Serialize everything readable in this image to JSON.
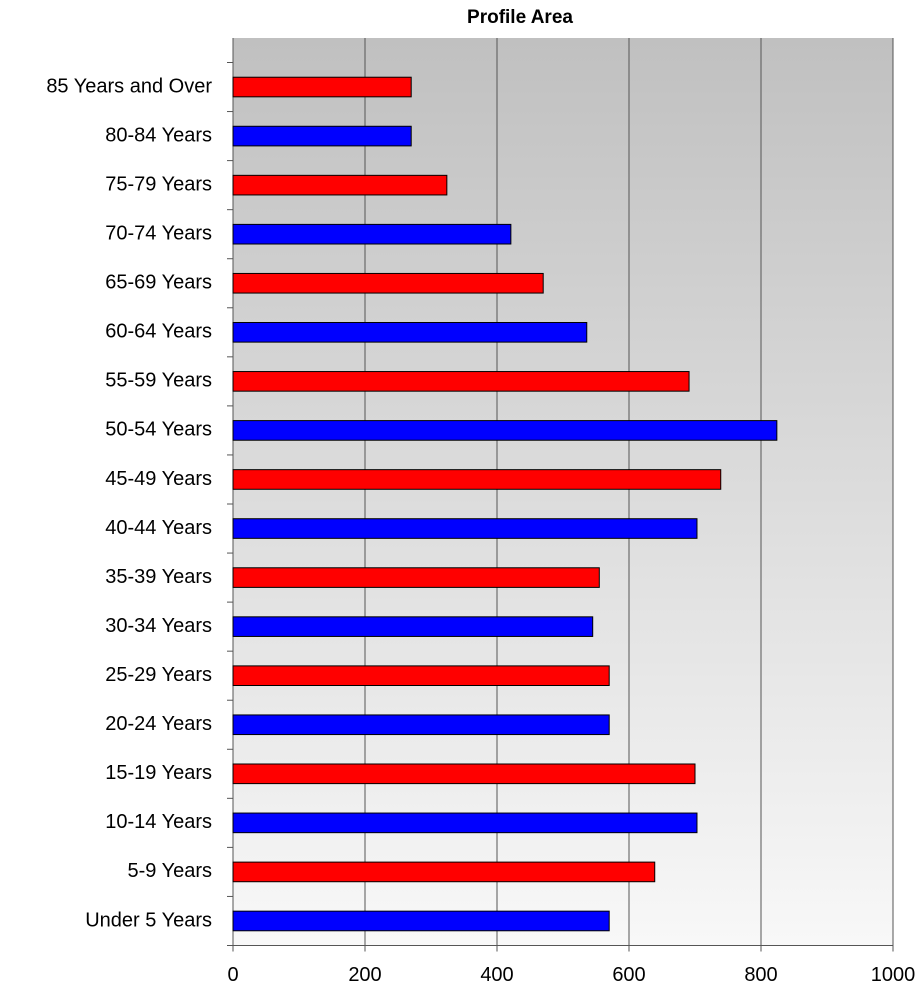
{
  "chart_data": {
    "type": "bar",
    "orientation": "horizontal",
    "title": "Profile Area",
    "categories": [
      "85 Years and Over",
      "80-84 Years",
      "75-79 Years",
      "70-74 Years",
      "65-69 Years",
      "60-64 Years",
      "55-59 Years",
      "50-54 Years",
      "45-49 Years",
      "40-44 Years",
      "35-39 Years",
      "30-34 Years",
      "25-29 Years",
      "20-24 Years",
      "15-19 Years",
      "10-14 Years",
      "5-9 Years",
      "Under 5 Years"
    ],
    "values": [
      270,
      270,
      324,
      421,
      470,
      536,
      691,
      824,
      739,
      703,
      555,
      545,
      570,
      570,
      700,
      703,
      639,
      570
    ],
    "colors": [
      "#ff0000",
      "#0000ff",
      "#ff0000",
      "#0000ff",
      "#ff0000",
      "#0000ff",
      "#ff0000",
      "#0000ff",
      "#ff0000",
      "#0000ff",
      "#ff0000",
      "#0000ff",
      "#ff0000",
      "#0000ff",
      "#ff0000",
      "#0000ff",
      "#ff0000",
      "#0000ff"
    ],
    "xlim": [
      0,
      1000
    ],
    "xticks": [
      0,
      200,
      400,
      600,
      800,
      1000
    ],
    "grid": true
  }
}
